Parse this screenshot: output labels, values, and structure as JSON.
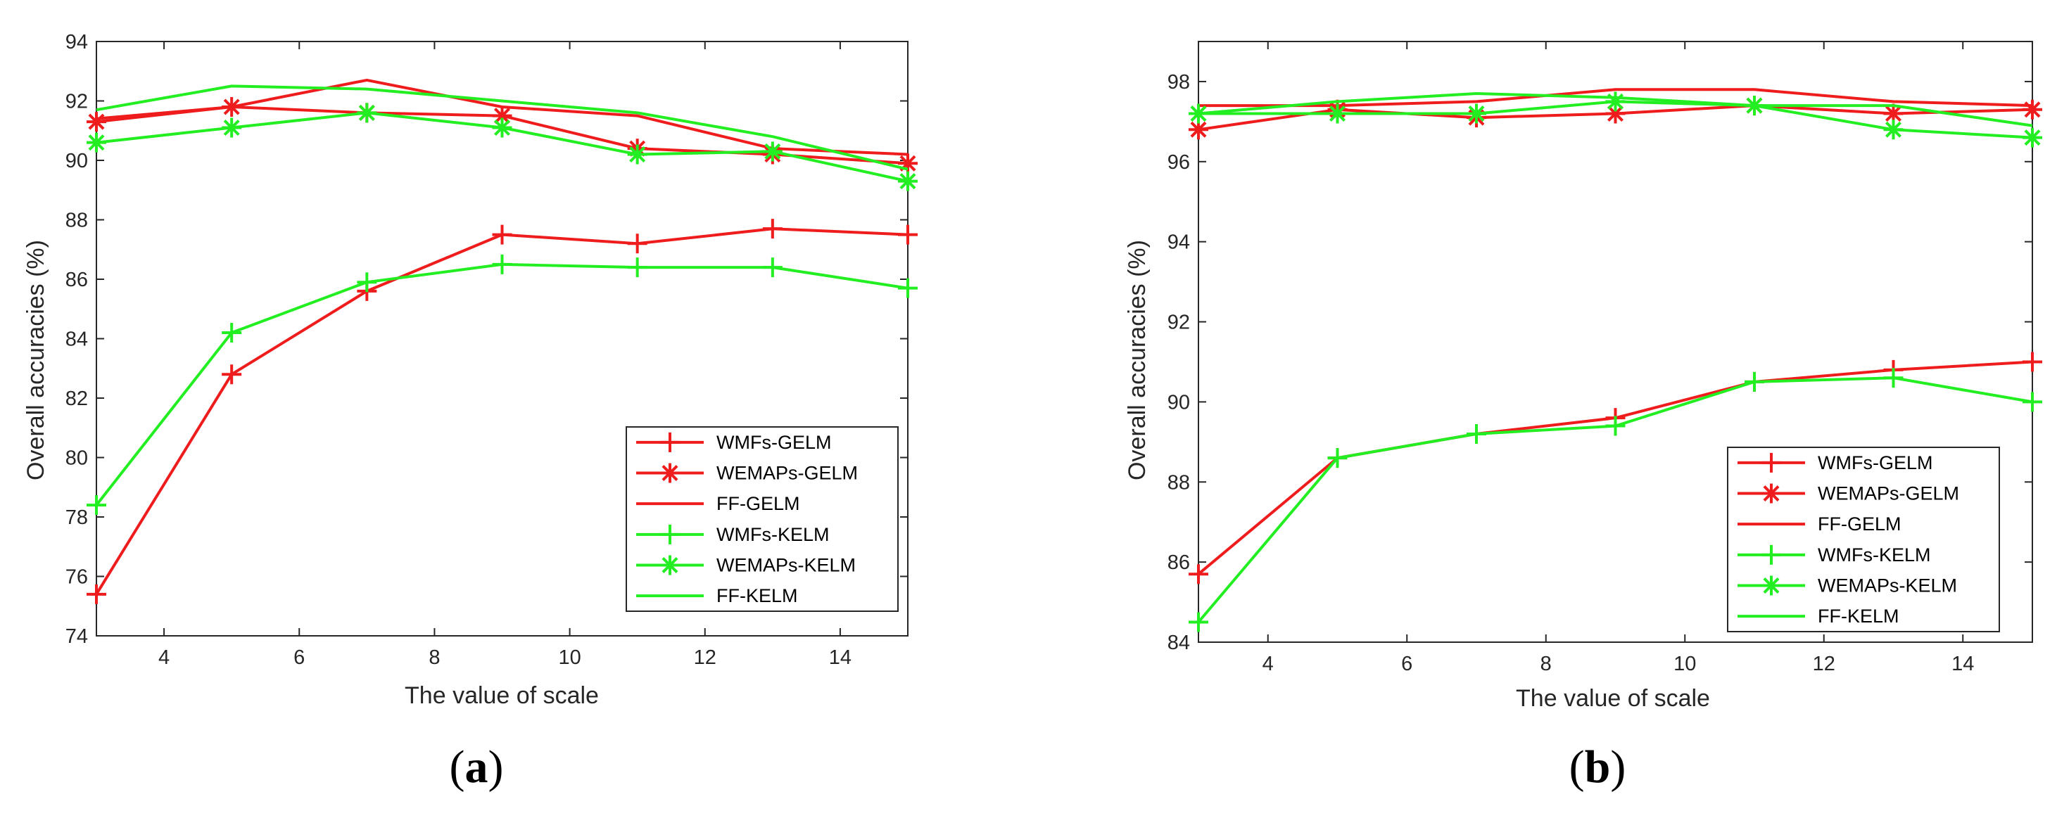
{
  "colors": {
    "gelm": "#ee1c1c",
    "kelm": "#22ee22",
    "axis": "#262626"
  },
  "chart_data": [
    {
      "type": "line",
      "panel_label": "a",
      "xlabel": "The value of scale",
      "ylabel": "Overall accuracies (%)",
      "xlim": [
        3,
        15
      ],
      "ylim": [
        74,
        94
      ],
      "xticks": [
        4,
        6,
        8,
        10,
        12,
        14
      ],
      "yticks": [
        74,
        76,
        78,
        80,
        82,
        84,
        86,
        88,
        90,
        92,
        94
      ],
      "x": [
        3,
        5,
        7,
        9,
        11,
        13,
        15
      ],
      "legend_position": "bottom-right",
      "series": [
        {
          "name": "WMFs-GELM",
          "color": "#ee1c1c",
          "marker": "plus",
          "values": [
            75.4,
            82.8,
            85.6,
            87.5,
            87.2,
            87.7,
            87.5
          ]
        },
        {
          "name": "WEMAPs-GELM",
          "color": "#ee1c1c",
          "marker": "star",
          "values": [
            91.3,
            91.8,
            91.6,
            91.5,
            90.4,
            90.2,
            89.9
          ]
        },
        {
          "name": "FF-GELM",
          "color": "#ee1c1c",
          "marker": "none",
          "values": [
            91.4,
            91.8,
            92.7,
            91.8,
            91.5,
            90.4,
            90.2
          ]
        },
        {
          "name": "WMFs-KELM",
          "color": "#22ee22",
          "marker": "plus",
          "values": [
            78.4,
            84.2,
            85.9,
            86.5,
            86.4,
            86.4,
            85.7
          ]
        },
        {
          "name": "WEMAPs-KELM",
          "color": "#22ee22",
          "marker": "star",
          "values": [
            90.6,
            91.1,
            91.6,
            91.1,
            90.2,
            90.3,
            89.3
          ]
        },
        {
          "name": "FF-KELM",
          "color": "#22ee22",
          "marker": "none",
          "values": [
            91.7,
            92.5,
            92.4,
            92.0,
            91.6,
            90.8,
            89.7
          ]
        }
      ]
    },
    {
      "type": "line",
      "panel_label": "b",
      "xlabel": "The value of scale",
      "ylabel": "Overall accuracies (%)",
      "xlim": [
        3,
        15
      ],
      "ylim": [
        84,
        99
      ],
      "xticks": [
        4,
        6,
        8,
        10,
        12,
        14
      ],
      "yticks": [
        84,
        86,
        88,
        90,
        92,
        94,
        96,
        98
      ],
      "x": [
        3,
        5,
        7,
        9,
        11,
        13,
        15
      ],
      "legend_position": "bottom-right",
      "series": [
        {
          "name": "WMFs-GELM",
          "color": "#ee1c1c",
          "marker": "plus",
          "values": [
            85.7,
            88.6,
            89.2,
            89.6,
            90.5,
            90.8,
            91.0
          ]
        },
        {
          "name": "WEMAPs-GELM",
          "color": "#ee1c1c",
          "marker": "star",
          "values": [
            96.8,
            97.3,
            97.1,
            97.2,
            97.4,
            97.2,
            97.3
          ]
        },
        {
          "name": "FF-GELM",
          "color": "#ee1c1c",
          "marker": "none",
          "values": [
            97.4,
            97.4,
            97.5,
            97.8,
            97.8,
            97.5,
            97.4
          ]
        },
        {
          "name": "WMFs-KELM",
          "color": "#22ee22",
          "marker": "plus",
          "values": [
            84.5,
            88.6,
            89.2,
            89.4,
            90.5,
            90.6,
            90.0
          ]
        },
        {
          "name": "WEMAPs-KELM",
          "color": "#22ee22",
          "marker": "star",
          "values": [
            97.2,
            97.2,
            97.2,
            97.5,
            97.4,
            96.8,
            96.6
          ]
        },
        {
          "name": "FF-KELM",
          "color": "#22ee22",
          "marker": "none",
          "values": [
            97.2,
            97.5,
            97.7,
            97.6,
            97.4,
            97.4,
            96.9
          ]
        }
      ]
    }
  ]
}
